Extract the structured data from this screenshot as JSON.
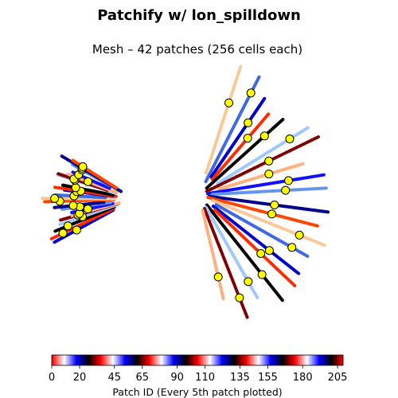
{
  "chart_data": {
    "type": "scatter",
    "title": "Patchify w/ lon_spilldown",
    "subtitle": "Mesh – 42 patches (256 cells each)",
    "colorbar": {
      "label": "Patch ID (Every 5th patch plotted)",
      "range": [
        0,
        209
      ],
      "ticks": [
        0,
        20,
        45,
        65,
        90,
        110,
        135,
        155,
        180,
        205
      ],
      "colormap": "flag-like (red, white, blue, black)"
    },
    "center_marker_color": "#ffff00",
    "center_marker_count": 42,
    "grid": false,
    "axes_visible": false
  }
}
